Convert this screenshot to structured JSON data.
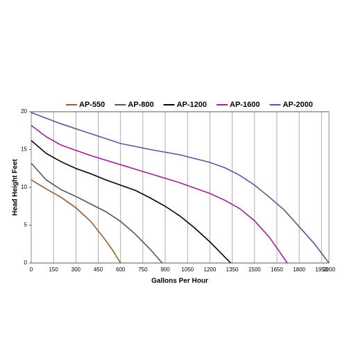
{
  "chart_data": {
    "type": "line",
    "x_label": "Gallons Per Hour",
    "y_label": "Head Height Feet",
    "xlim": [
      0,
      2000
    ],
    "ylim": [
      0,
      20
    ],
    "xticks": [
      0,
      150,
      300,
      450,
      600,
      750,
      900,
      1050,
      1200,
      1350,
      1500,
      1650,
      1800,
      1950,
      2000
    ],
    "yticks": [
      0,
      5,
      10,
      15,
      20
    ],
    "grid": "x",
    "legend": "top",
    "series": [
      {
        "name": "AP-550",
        "color": "#9a5a2c",
        "x": [
          0,
          100,
          200,
          300,
          400,
          500,
          550,
          600
        ],
        "values": [
          11,
          9.8,
          8.7,
          7.3,
          5.5,
          3,
          1.6,
          0
        ]
      },
      {
        "name": "AP-800",
        "color": "#555555",
        "x": [
          0,
          100,
          200,
          300,
          400,
          500,
          600,
          700,
          800,
          880
        ],
        "values": [
          13.2,
          11,
          9.7,
          8.8,
          7.8,
          6.8,
          5.5,
          3.8,
          1.8,
          0
        ]
      },
      {
        "name": "AP-1200",
        "color": "#000000",
        "x": [
          0,
          100,
          200,
          300,
          400,
          500,
          600,
          700,
          800,
          900,
          1000,
          1100,
          1200,
          1300,
          1340
        ],
        "values": [
          16.2,
          14.5,
          13.4,
          12.5,
          11.8,
          11,
          10.3,
          9.6,
          8.6,
          7.5,
          6.2,
          4.6,
          2.8,
          0.8,
          0
        ]
      },
      {
        "name": "AP-1600",
        "color": "#a0209a",
        "x": [
          0,
          100,
          200,
          300,
          400,
          600,
          800,
          1000,
          1200,
          1300,
          1400,
          1500,
          1600,
          1650,
          1720
        ],
        "values": [
          18.2,
          16.7,
          15.6,
          14.9,
          14.2,
          13,
          11.8,
          10.6,
          9.2,
          8.3,
          7.2,
          5.6,
          3.4,
          2,
          0
        ]
      },
      {
        "name": "AP-2000",
        "color": "#6a4c9c",
        "x": [
          0,
          200,
          400,
          600,
          800,
          1000,
          1200,
          1300,
          1400,
          1500,
          1600,
          1700,
          1800,
          1900,
          2000
        ],
        "values": [
          19.9,
          18.4,
          17.1,
          15.8,
          15,
          14.3,
          13.3,
          12.6,
          11.6,
          10.3,
          8.7,
          7,
          4.8,
          2.6,
          0
        ]
      }
    ]
  }
}
